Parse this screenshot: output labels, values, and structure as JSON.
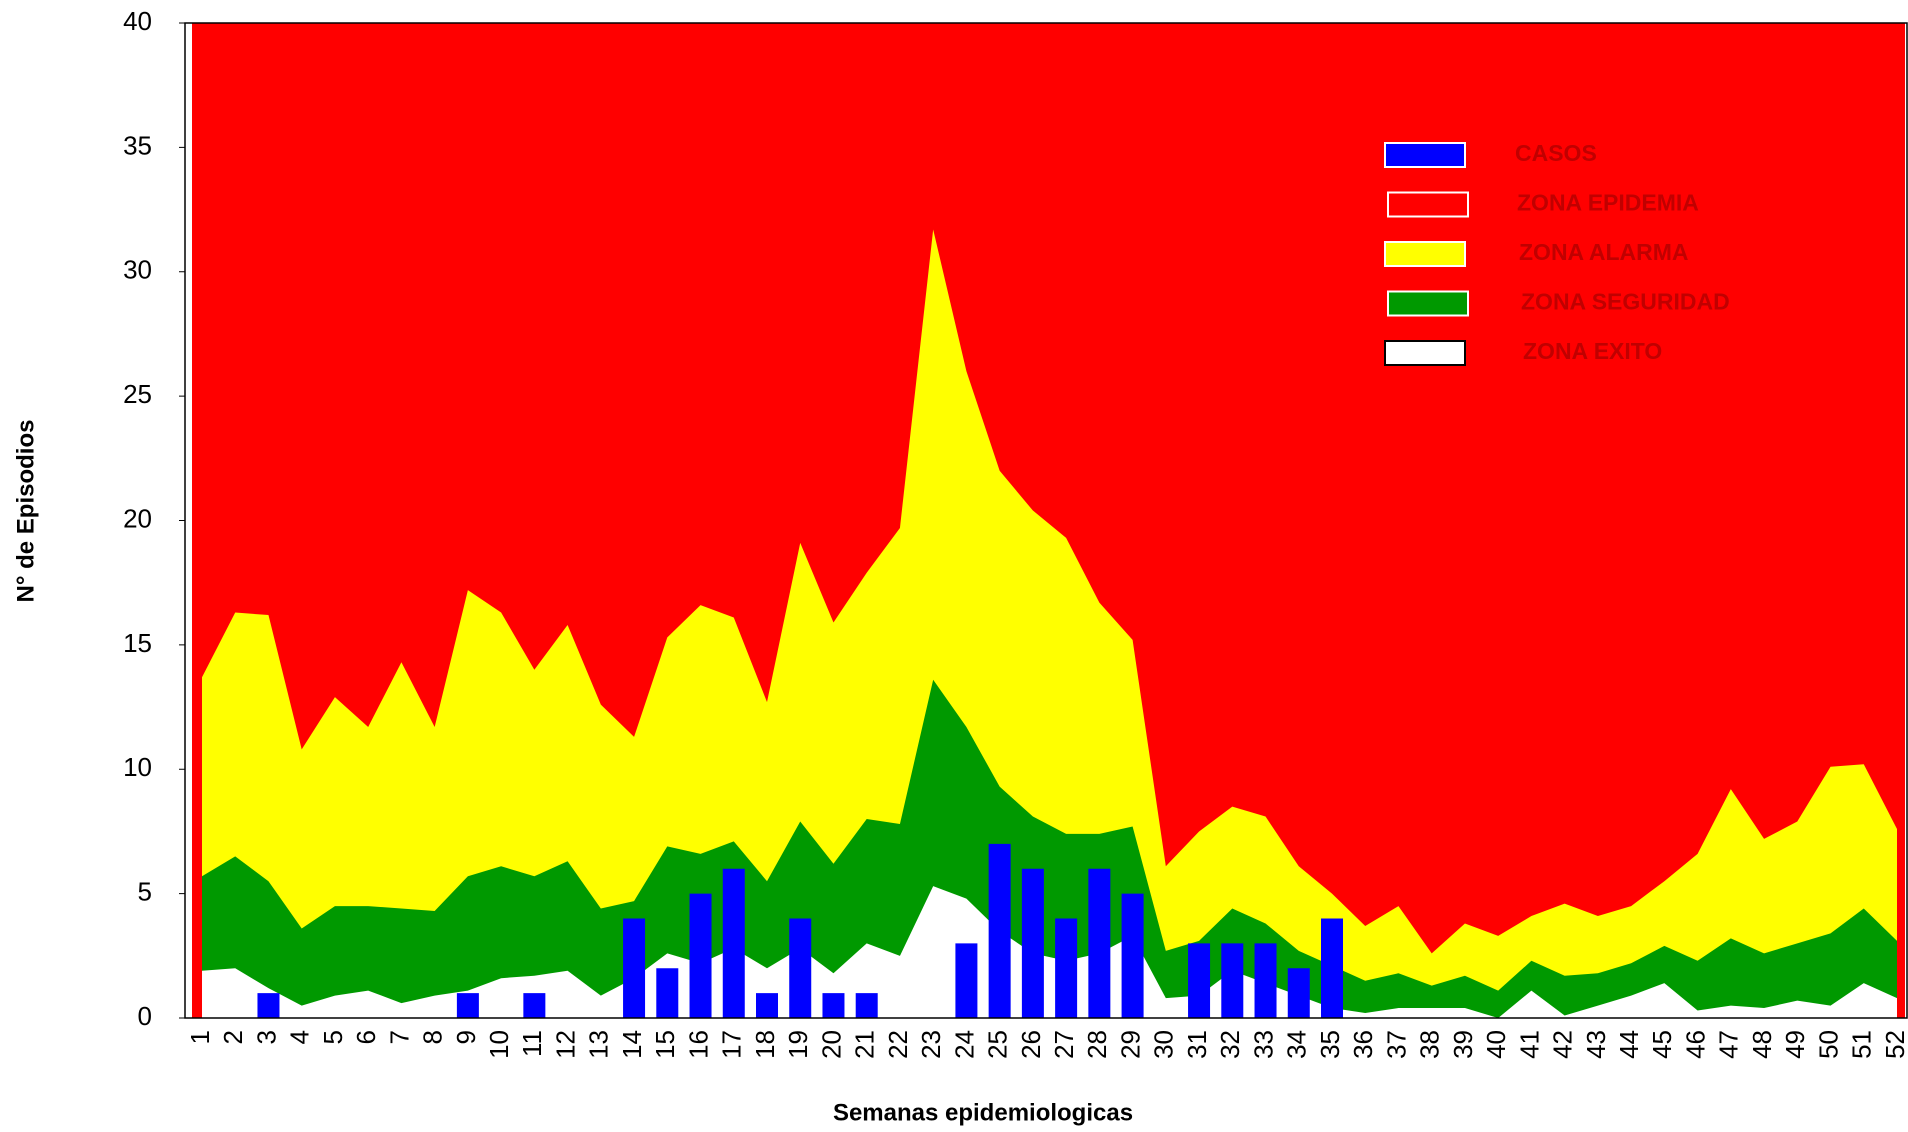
{
  "chart_data": {
    "type": "area",
    "x_label": "Semanas epidemiologicas",
    "y_label": "N° de Episodios",
    "categories": [
      "1",
      "2",
      "3",
      "4",
      "5",
      "6",
      "7",
      "8",
      "9",
      "10",
      "11",
      "12",
      "13",
      "14",
      "15",
      "16",
      "17",
      "18",
      "19",
      "20",
      "21",
      "22",
      "23",
      "24",
      "25",
      "26",
      "27",
      "28",
      "29",
      "30",
      "31",
      "32",
      "33",
      "34",
      "35",
      "36",
      "37",
      "38",
      "39",
      "40",
      "41",
      "42",
      "43",
      "44",
      "45",
      "46",
      "47",
      "48",
      "49",
      "50",
      "51",
      "52"
    ],
    "ylim": [
      0,
      40
    ],
    "yticks": [
      0,
      5,
      10,
      15,
      20,
      25,
      30,
      35,
      40
    ],
    "legend": "upper right",
    "series": [
      {
        "name": "CASOS",
        "type": "bar",
        "color": "#0000ff",
        "values": [
          0,
          0,
          1,
          0,
          0,
          0,
          0,
          0,
          1,
          0,
          1,
          0,
          0,
          4,
          2,
          5,
          6,
          1,
          4,
          1,
          1,
          0,
          0,
          3,
          7,
          6,
          4,
          6,
          5,
          0,
          3,
          3,
          3,
          2,
          4,
          0,
          0,
          0,
          0,
          0,
          0,
          0,
          0,
          0,
          0,
          0,
          0,
          0,
          0,
          0,
          0,
          0
        ]
      },
      {
        "name": "ZONA EPIDEMIA",
        "type": "background",
        "color": "#ff0000"
      },
      {
        "name": "ZONA ALARMA",
        "type": "area",
        "color": "#ffff00",
        "values": [
          13.7,
          16.3,
          16.2,
          10.8,
          12.9,
          11.7,
          14.3,
          11.7,
          17.2,
          16.3,
          14.0,
          15.8,
          12.6,
          11.3,
          15.3,
          16.6,
          16.1,
          12.7,
          19.1,
          15.9,
          17.9,
          19.7,
          31.7,
          26.0,
          22.0,
          20.4,
          19.3,
          16.7,
          15.2,
          6.1,
          7.5,
          8.5,
          8.1,
          6.1,
          5.0,
          3.7,
          4.5,
          2.6,
          3.8,
          3.3,
          4.1,
          4.6,
          4.1,
          4.5,
          5.5,
          6.6,
          9.2,
          7.2,
          7.9,
          10.1,
          10.2,
          7.6
        ]
      },
      {
        "name": "ZONA SEGURIDAD",
        "type": "area",
        "color": "#009900",
        "values": [
          5.7,
          6.5,
          5.5,
          3.6,
          4.5,
          4.5,
          4.4,
          4.3,
          5.7,
          6.1,
          5.7,
          6.3,
          4.4,
          4.7,
          6.9,
          6.6,
          7.1,
          5.5,
          7.9,
          6.2,
          8.0,
          7.8,
          13.6,
          11.7,
          9.3,
          8.1,
          7.4,
          7.4,
          7.7,
          2.7,
          3.1,
          4.4,
          3.8,
          2.7,
          2.1,
          1.5,
          1.8,
          1.3,
          1.7,
          1.1,
          2.3,
          1.7,
          1.8,
          2.2,
          2.9,
          2.3,
          3.2,
          2.6,
          3.0,
          3.4,
          4.4,
          3.1
        ]
      },
      {
        "name": "ZONA EXITO",
        "type": "area",
        "color": "#ffffff",
        "values": [
          1.9,
          2.0,
          1.2,
          0.5,
          0.9,
          1.1,
          0.6,
          0.9,
          1.1,
          1.6,
          1.7,
          1.9,
          0.9,
          1.6,
          2.6,
          2.2,
          2.8,
          2.0,
          2.8,
          1.8,
          3.0,
          2.5,
          5.3,
          4.8,
          3.5,
          2.6,
          2.3,
          2.6,
          3.3,
          0.8,
          0.9,
          1.9,
          1.4,
          0.9,
          0.4,
          0.2,
          0.4,
          0.4,
          0.4,
          0,
          1.1,
          0.1,
          0.5,
          0.9,
          1.4,
          0.3,
          0.5,
          0.4,
          0.7,
          0.5,
          1.4,
          0.8
        ]
      }
    ]
  }
}
